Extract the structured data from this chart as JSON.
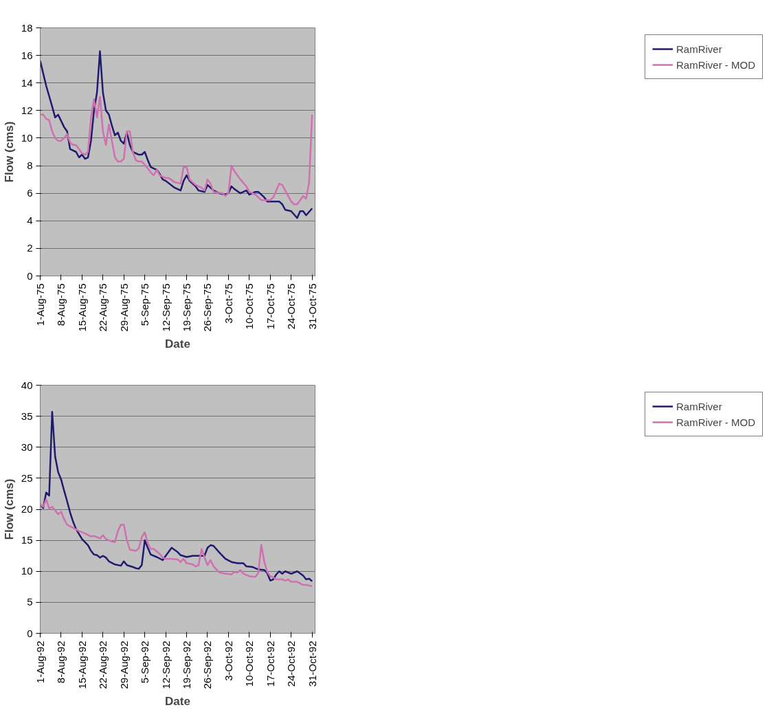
{
  "chart_data": [
    {
      "type": "line",
      "xlabel": "Date",
      "ylabel": "Flow (cms)",
      "xlim": [
        "1975-08-01",
        "1975-11-01"
      ],
      "ylim": [
        0,
        18
      ],
      "yticks": [
        0,
        2,
        4,
        6,
        8,
        10,
        12,
        14,
        16,
        18
      ],
      "xticks": [
        {
          "value": "1975-08-01",
          "label": "1-Aug-75"
        },
        {
          "value": "1975-08-08",
          "label": "8-Aug-75"
        },
        {
          "value": "1975-08-15",
          "label": "15-Aug-75"
        },
        {
          "value": "1975-08-22",
          "label": "22-Aug-75"
        },
        {
          "value": "1975-08-29",
          "label": "29-Aug-75"
        },
        {
          "value": "1975-09-05",
          "label": "5-Sep-75"
        },
        {
          "value": "1975-09-12",
          "label": "12-Sep-75"
        },
        {
          "value": "1975-09-19",
          "label": "19-Sep-75"
        },
        {
          "value": "1975-09-26",
          "label": "26-Sep-75"
        },
        {
          "value": "1975-10-03",
          "label": "3-Oct-75"
        },
        {
          "value": "1975-10-10",
          "label": "10-Oct-75"
        },
        {
          "value": "1975-10-17",
          "label": "17-Oct-75"
        },
        {
          "value": "1975-10-24",
          "label": "24-Oct-75"
        },
        {
          "value": "1975-10-31",
          "label": "31-Oct-75"
        }
      ],
      "grid": "y",
      "legend": "right",
      "marker": "none",
      "line_style": "solid",
      "series": [
        {
          "name": "RamRiver",
          "color": "#1f1a6e",
          "x": [
            "1975-08-01",
            "1975-08-03",
            "1975-08-05",
            "1975-08-06",
            "1975-08-07",
            "1975-08-09",
            "1975-08-10",
            "1975-08-11",
            "1975-08-13",
            "1975-08-14",
            "1975-08-15",
            "1975-08-16",
            "1975-08-17",
            "1975-08-18",
            "1975-08-19",
            "1975-08-20",
            "1975-08-21",
            "1975-08-22",
            "1975-08-23",
            "1975-08-24",
            "1975-08-25",
            "1975-08-26",
            "1975-08-27",
            "1975-08-28",
            "1975-08-29",
            "1975-08-30",
            "1975-08-31",
            "1975-09-01",
            "1975-09-03",
            "1975-09-04",
            "1975-09-05",
            "1975-09-06",
            "1975-09-07",
            "1975-09-09",
            "1975-09-10",
            "1975-09-11",
            "1975-09-12",
            "1975-09-15",
            "1975-09-17",
            "1975-09-18",
            "1975-09-19",
            "1975-09-20",
            "1975-09-22",
            "1975-09-23",
            "1975-09-25",
            "1975-09-26",
            "1975-09-27",
            "1975-09-28",
            "1975-09-30",
            "1975-10-02",
            "1975-10-03",
            "1975-10-04",
            "1975-10-05",
            "1975-10-07",
            "1975-10-09",
            "1975-10-10",
            "1975-10-12",
            "1975-10-13",
            "1975-10-15",
            "1975-10-16",
            "1975-10-20",
            "1975-10-21",
            "1975-10-22",
            "1975-10-24",
            "1975-10-26",
            "1975-10-27",
            "1975-10-28",
            "1975-10-29",
            "1975-10-31"
          ],
          "values": [
            15.6,
            13.8,
            12.3,
            11.5,
            11.7,
            10.8,
            10.5,
            9.2,
            9.0,
            8.6,
            8.8,
            8.5,
            8.6,
            9.8,
            12.0,
            13.3,
            16.3,
            13.3,
            12.0,
            11.7,
            10.9,
            10.2,
            10.4,
            9.8,
            9.6,
            10.4,
            9.5,
            9.0,
            8.8,
            8.8,
            9.0,
            8.4,
            7.9,
            7.7,
            7.4,
            7.0,
            6.9,
            6.4,
            6.2,
            6.9,
            7.3,
            6.9,
            6.5,
            6.2,
            6.1,
            6.6,
            6.4,
            6.2,
            6.0,
            5.9,
            6.0,
            6.5,
            6.3,
            6.0,
            6.2,
            5.9,
            6.1,
            6.1,
            5.7,
            5.4,
            5.4,
            5.2,
            4.8,
            4.7,
            4.2,
            4.7,
            4.7,
            4.4,
            4.9
          ]
        },
        {
          "name": "RamRiver - MOD",
          "color": "#d070b0",
          "x": [
            "1975-08-01",
            "1975-08-02",
            "1975-08-03",
            "1975-08-04",
            "1975-08-05",
            "1975-08-06",
            "1975-08-07",
            "1975-08-08",
            "1975-08-09",
            "1975-08-10",
            "1975-08-11",
            "1975-08-12",
            "1975-08-13",
            "1975-08-14",
            "1975-08-15",
            "1975-08-16",
            "1975-08-17",
            "1975-08-18",
            "1975-08-19",
            "1975-08-20",
            "1975-08-21",
            "1975-08-22",
            "1975-08-23",
            "1975-08-24",
            "1975-08-25",
            "1975-08-26",
            "1975-08-27",
            "1975-08-28",
            "1975-08-29",
            "1975-08-30",
            "1975-08-31",
            "1975-09-01",
            "1975-09-02",
            "1975-09-03",
            "1975-09-04",
            "1975-09-06",
            "1975-09-07",
            "1975-09-08",
            "1975-09-09",
            "1975-09-10",
            "1975-09-12",
            "1975-09-13",
            "1975-09-15",
            "1975-09-17",
            "1975-09-18",
            "1975-09-19",
            "1975-09-20",
            "1975-09-22",
            "1975-09-24",
            "1975-09-25",
            "1975-09-26",
            "1975-09-27",
            "1975-09-28",
            "1975-10-01",
            "1975-10-02",
            "1975-10-03",
            "1975-10-04",
            "1975-10-05",
            "1975-10-07",
            "1975-10-09",
            "1975-10-10",
            "1975-10-12",
            "1975-10-13",
            "1975-10-14",
            "1975-10-17",
            "1975-10-18",
            "1975-10-20",
            "1975-10-21",
            "1975-10-23",
            "1975-10-24",
            "1975-10-25",
            "1975-10-26",
            "1975-10-27",
            "1975-10-28",
            "1975-10-29",
            "1975-10-30",
            "1975-10-31"
          ],
          "values": [
            11.7,
            11.7,
            11.4,
            11.3,
            10.5,
            10.0,
            9.8,
            9.8,
            10.0,
            10.3,
            9.7,
            9.5,
            9.5,
            9.2,
            8.9,
            8.8,
            9.0,
            11.5,
            12.8,
            11.5,
            13.0,
            10.5,
            9.5,
            11.0,
            9.8,
            8.6,
            8.3,
            8.3,
            8.5,
            10.5,
            10.5,
            9.0,
            8.4,
            8.3,
            8.3,
            7.8,
            7.5,
            7.3,
            7.7,
            7.3,
            7.1,
            7.1,
            6.8,
            6.7,
            7.9,
            7.9,
            7.0,
            6.6,
            6.4,
            6.2,
            7.0,
            6.7,
            6.1,
            6.0,
            5.8,
            6.0,
            8.0,
            7.6,
            7.0,
            6.5,
            6.1,
            5.9,
            5.7,
            5.5,
            5.5,
            5.7,
            6.7,
            6.6,
            5.8,
            5.4,
            5.2,
            5.2,
            5.5,
            5.8,
            5.6,
            6.8,
            11.7
          ]
        }
      ]
    },
    {
      "type": "line",
      "xlabel": "Date",
      "ylabel": "Flow (cms)",
      "xlim": [
        "1992-08-01",
        "1992-11-01"
      ],
      "ylim": [
        0,
        40
      ],
      "yticks": [
        0,
        5,
        10,
        15,
        20,
        25,
        30,
        35,
        40
      ],
      "xticks": [
        {
          "value": "1992-08-01",
          "label": "1-Aug-92"
        },
        {
          "value": "1992-08-08",
          "label": "8-Aug-92"
        },
        {
          "value": "1992-08-15",
          "label": "15-Aug-92"
        },
        {
          "value": "1992-08-22",
          "label": "22-Aug-92"
        },
        {
          "value": "1992-08-29",
          "label": "29-Aug-92"
        },
        {
          "value": "1992-09-05",
          "label": "5-Sep-92"
        },
        {
          "value": "1992-09-12",
          "label": "12-Sep-92"
        },
        {
          "value": "1992-09-19",
          "label": "19-Sep-92"
        },
        {
          "value": "1992-09-26",
          "label": "26-Sep-92"
        },
        {
          "value": "1992-10-03",
          "label": "3-Oct-92"
        },
        {
          "value": "1992-10-10",
          "label": "10-Oct-92"
        },
        {
          "value": "1992-10-17",
          "label": "17-Oct-92"
        },
        {
          "value": "1992-10-24",
          "label": "24-Oct-92"
        },
        {
          "value": "1992-10-31",
          "label": "31-Oct-92"
        }
      ],
      "grid": "y",
      "legend": "right",
      "marker": "none",
      "line_style": "solid",
      "series": [
        {
          "name": "RamRiver",
          "color": "#1f1a6e",
          "x": [
            "1992-08-01",
            "1992-08-02",
            "1992-08-03",
            "1992-08-04",
            "1992-08-05",
            "1992-08-06",
            "1992-08-07",
            "1992-08-08",
            "1992-08-09",
            "1992-08-10",
            "1992-08-11",
            "1992-08-12",
            "1992-08-13",
            "1992-08-14",
            "1992-08-15",
            "1992-08-17",
            "1992-08-18",
            "1992-08-19",
            "1992-08-20",
            "1992-08-21",
            "1992-08-22",
            "1992-08-23",
            "1992-08-24",
            "1992-08-26",
            "1992-08-28",
            "1992-08-29",
            "1992-08-30",
            "1992-09-01",
            "1992-09-02",
            "1992-09-03",
            "1992-09-04",
            "1992-09-05",
            "1992-09-06",
            "1992-09-07",
            "1992-09-09",
            "1992-09-11",
            "1992-09-12",
            "1992-09-14",
            "1992-09-16",
            "1992-09-17",
            "1992-09-19",
            "1992-09-21",
            "1992-09-23",
            "1992-09-25",
            "1992-09-26",
            "1992-09-27",
            "1992-09-28",
            "1992-09-30",
            "1992-10-02",
            "1992-10-04",
            "1992-10-06",
            "1992-10-08",
            "1992-10-09",
            "1992-10-11",
            "1992-10-13",
            "1992-10-15",
            "1992-10-16",
            "1992-10-17",
            "1992-10-18",
            "1992-10-19",
            "1992-10-20",
            "1992-10-21",
            "1992-10-22",
            "1992-10-24",
            "1992-10-26",
            "1992-10-28",
            "1992-10-29",
            "1992-10-30",
            "1992-10-31"
          ],
          "values": [
            20.8,
            20.2,
            22.7,
            22.2,
            35.7,
            28.5,
            26.0,
            24.8,
            23.0,
            21.3,
            19.5,
            18.0,
            16.8,
            16.0,
            15.2,
            14.2,
            13.3,
            12.7,
            12.6,
            12.2,
            12.5,
            12.2,
            11.6,
            11.1,
            10.9,
            11.6,
            11.0,
            10.7,
            10.5,
            10.4,
            11.0,
            15.0,
            13.8,
            12.7,
            12.3,
            11.8,
            12.5,
            13.8,
            13.1,
            12.6,
            12.3,
            12.5,
            12.5,
            12.5,
            13.8,
            14.2,
            14.1,
            13.0,
            12.0,
            11.5,
            11.3,
            11.3,
            10.8,
            10.7,
            10.3,
            10.2,
            9.7,
            8.5,
            8.7,
            9.5,
            10.0,
            9.6,
            10.0,
            9.6,
            10.0,
            9.3,
            8.7,
            8.8,
            8.4
          ]
        },
        {
          "name": "RamRiver - MOD",
          "color": "#d070b0",
          "x": [
            "1992-08-01",
            "1992-08-02",
            "1992-08-03",
            "1992-08-04",
            "1992-08-05",
            "1992-08-06",
            "1992-08-07",
            "1992-08-08",
            "1992-08-09",
            "1992-08-10",
            "1992-08-12",
            "1992-08-14",
            "1992-08-16",
            "1992-08-18",
            "1992-08-19",
            "1992-08-21",
            "1992-08-22",
            "1992-08-23",
            "1992-08-25",
            "1992-08-26",
            "1992-08-27",
            "1992-08-28",
            "1992-08-29",
            "1992-08-30",
            "1992-08-31",
            "1992-09-02",
            "1992-09-03",
            "1992-09-04",
            "1992-09-05",
            "1992-09-06",
            "1992-09-07",
            "1992-09-08",
            "1992-09-10",
            "1992-09-11",
            "1992-09-12",
            "1992-09-14",
            "1992-09-16",
            "1992-09-17",
            "1992-09-18",
            "1992-09-19",
            "1992-09-21",
            "1992-09-22",
            "1992-09-23",
            "1992-09-24",
            "1992-09-25",
            "1992-09-26",
            "1992-09-27",
            "1992-09-28",
            "1992-09-30",
            "1992-10-02",
            "1992-10-04",
            "1992-10-05",
            "1992-10-06",
            "1992-10-07",
            "1992-10-08",
            "1992-10-10",
            "1992-10-12",
            "1992-10-13",
            "1992-10-14",
            "1992-10-15",
            "1992-10-16",
            "1992-10-17",
            "1992-10-18",
            "1992-10-19",
            "1992-10-21",
            "1992-10-22",
            "1992-10-23",
            "1992-10-24",
            "1992-10-26",
            "1992-10-28",
            "1992-10-29",
            "1992-10-31"
          ],
          "values": [
            20.8,
            20.4,
            21.6,
            20.1,
            20.4,
            19.8,
            19.2,
            19.6,
            18.4,
            17.5,
            17.0,
            16.5,
            16.1,
            15.6,
            15.7,
            15.3,
            15.8,
            15.2,
            14.8,
            14.7,
            16.5,
            17.5,
            17.5,
            15.0,
            13.5,
            13.3,
            13.7,
            15.5,
            16.3,
            14.5,
            13.6,
            13.6,
            12.8,
            12.2,
            12.0,
            12.0,
            11.9,
            11.5,
            12.0,
            11.3,
            11.1,
            10.8,
            11.0,
            13.6,
            12.2,
            11.0,
            11.8,
            10.8,
            9.8,
            9.6,
            9.5,
            9.9,
            9.8,
            10.2,
            9.6,
            9.2,
            9.1,
            9.7,
            14.3,
            11.5,
            9.9,
            9.2,
            9.0,
            8.7,
            8.7,
            8.5,
            8.7,
            8.3,
            8.3,
            7.8,
            7.8,
            7.6
          ]
        }
      ]
    }
  ]
}
